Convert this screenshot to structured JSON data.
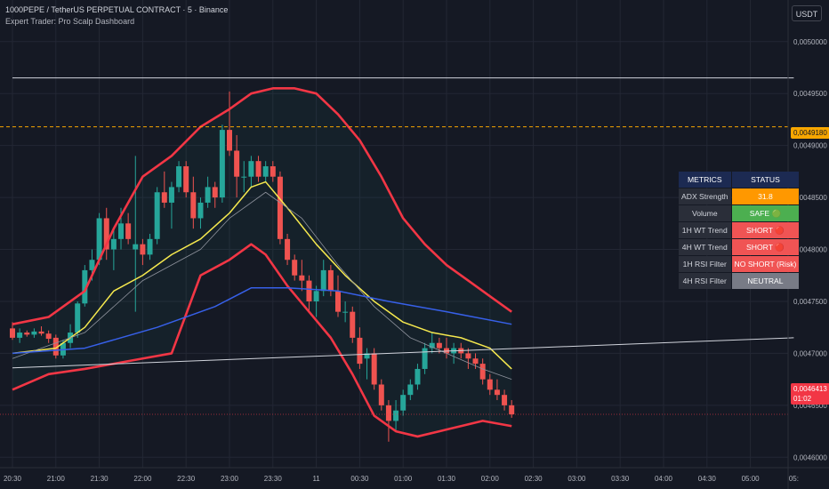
{
  "header": {
    "title": "1000PEPE / TetherUS PERPETUAL CONTRACT · 5 · Binance",
    "indicator": "Expert Trader: Pro Scalp Dashboard",
    "currency_button": "USDT"
  },
  "price_tags": {
    "level": "0,0049180",
    "last": "0,0046413",
    "countdown": "01:02"
  },
  "dashboard": {
    "header": [
      "METRICS",
      "STATUS"
    ],
    "rows": [
      {
        "metric": "ADX Strength",
        "status": "31.8",
        "color": "#ff9800"
      },
      {
        "metric": "Volume",
        "status": "SAFE 🟢",
        "color": "#4caf50"
      },
      {
        "metric": "1H WT Trend",
        "status": "SHORT 🔴",
        "color": "#f05454"
      },
      {
        "metric": "4H WT Trend",
        "status": "SHORT 🔴",
        "color": "#f05454"
      },
      {
        "metric": "1H RSI Filter",
        "status": "NO SHORT (Risk)",
        "color": "#f05454"
      },
      {
        "metric": "4H RSI Filter",
        "status": "NEUTRAL",
        "color": "#787b86"
      }
    ]
  },
  "chart_data": {
    "type": "candlestick",
    "y_ticks": [
      "0,0050000",
      "0,0049500",
      "0,0049000",
      "0,0048500",
      "0,0048000",
      "0,0047500",
      "0,0047000",
      "0,0046500",
      "0,0046000"
    ],
    "x_ticks": [
      "20:30",
      "21:00",
      "21:30",
      "22:00",
      "22:30",
      "23:00",
      "23:30",
      "11",
      "00:30",
      "01:00",
      "01:30",
      "02:00",
      "02:30",
      "03:00",
      "03:30",
      "04:00",
      "04:30",
      "05:00",
      "05:"
    ],
    "ylim": [
      0.00459,
      0.00504
    ],
    "time_axis": {
      "start": "20:30",
      "interval_minutes": 5
    },
    "candles": [
      [
        0.004724,
        0.00473,
        0.004713,
        0.004715
      ],
      [
        0.004715,
        0.004724,
        0.00471,
        0.00472
      ],
      [
        0.00472,
        0.004722,
        0.004716,
        0.004718
      ],
      [
        0.004718,
        0.004724,
        0.004715,
        0.004721
      ],
      [
        0.004721,
        0.004726,
        0.004717,
        0.004719
      ],
      [
        0.004719,
        0.004722,
        0.00471,
        0.004714
      ],
      [
        0.004715,
        0.004718,
        0.004695,
        0.004698
      ],
      [
        0.004698,
        0.004713,
        0.004695,
        0.00471
      ],
      [
        0.00471,
        0.004728,
        0.004705,
        0.00472
      ],
      [
        0.00472,
        0.00475,
        0.004715,
        0.004748
      ],
      [
        0.004748,
        0.004785,
        0.004745,
        0.00478
      ],
      [
        0.00478,
        0.0048,
        0.00477,
        0.00479
      ],
      [
        0.00479,
        0.004835,
        0.004785,
        0.00483
      ],
      [
        0.00483,
        0.00484,
        0.00479,
        0.0048
      ],
      [
        0.0048,
        0.00482,
        0.00478,
        0.00481
      ],
      [
        0.00481,
        0.00484,
        0.0048,
        0.004825
      ],
      [
        0.004825,
        0.004835,
        0.004805,
        0.00481
      ],
      [
        0.0048,
        0.00489,
        0.00474,
        0.004805
      ],
      [
        0.004805,
        0.00481,
        0.004785,
        0.004795
      ],
      [
        0.004795,
        0.004815,
        0.00479,
        0.00481
      ],
      [
        0.00481,
        0.00486,
        0.004805,
        0.004855
      ],
      [
        0.004855,
        0.004875,
        0.00484,
        0.004845
      ],
      [
        0.004845,
        0.004865,
        0.00482,
        0.00486
      ],
      [
        0.00486,
        0.004885,
        0.004855,
        0.00488
      ],
      [
        0.00488,
        0.004885,
        0.00485,
        0.004855
      ],
      [
        0.004855,
        0.00487,
        0.00482,
        0.00483
      ],
      [
        0.00483,
        0.00485,
        0.00482,
        0.004845
      ],
      [
        0.004845,
        0.00487,
        0.00484,
        0.00486
      ],
      [
        0.00486,
        0.004865,
        0.00484,
        0.00485
      ],
      [
        0.00485,
        0.00492,
        0.004845,
        0.004915
      ],
      [
        0.004915,
        0.004952,
        0.00489,
        0.004895
      ],
      [
        0.004895,
        0.00491,
        0.00485,
        0.00487
      ],
      [
        0.00487,
        0.004885,
        0.004855,
        0.00487
      ],
      [
        0.00487,
        0.00489,
        0.00486,
        0.004885
      ],
      [
        0.004885,
        0.00489,
        0.004865,
        0.00487
      ],
      [
        0.00487,
        0.004885,
        0.004865,
        0.00488
      ],
      [
        0.00488,
        0.004885,
        0.004865,
        0.00487
      ],
      [
        0.00487,
        0.004875,
        0.004805,
        0.00481
      ],
      [
        0.00481,
        0.004815,
        0.004785,
        0.00479
      ],
      [
        0.00479,
        0.004795,
        0.00477,
        0.004775
      ],
      [
        0.004775,
        0.00479,
        0.00476,
        0.00477
      ],
      [
        0.00477,
        0.004775,
        0.00474,
        0.00475
      ],
      [
        0.00475,
        0.004765,
        0.004735,
        0.00476
      ],
      [
        0.00476,
        0.00479,
        0.004755,
        0.00478
      ],
      [
        0.00478,
        0.004785,
        0.004755,
        0.00476
      ],
      [
        0.00476,
        0.004775,
        0.004735,
        0.00474
      ],
      [
        0.00474,
        0.00475,
        0.00473,
        0.00474
      ],
      [
        0.00474,
        0.004745,
        0.00471,
        0.004715
      ],
      [
        0.004715,
        0.004725,
        0.004685,
        0.00469
      ],
      [
        0.004695,
        0.004705,
        0.004675,
        0.0047
      ],
      [
        0.0047,
        0.004705,
        0.004665,
        0.00467
      ],
      [
        0.00467,
        0.004675,
        0.004645,
        0.00465
      ],
      [
        0.00465,
        0.004655,
        0.004615,
        0.004635
      ],
      [
        0.004635,
        0.004655,
        0.004625,
        0.004645
      ],
      [
        0.004645,
        0.004665,
        0.00464,
        0.00466
      ],
      [
        0.00466,
        0.004675,
        0.004655,
        0.00467
      ],
      [
        0.00467,
        0.00469,
        0.004665,
        0.004685
      ],
      [
        0.004685,
        0.00471,
        0.00468,
        0.004705
      ],
      [
        0.004705,
        0.00472,
        0.0047,
        0.00471
      ],
      [
        0.00471,
        0.004715,
        0.0047,
        0.004705
      ],
      [
        0.004705,
        0.004715,
        0.004695,
        0.0047
      ],
      [
        0.0047,
        0.00471,
        0.00469,
        0.004705
      ],
      [
        0.004705,
        0.00471,
        0.004695,
        0.0047
      ],
      [
        0.0047,
        0.004705,
        0.004685,
        0.004695
      ],
      [
        0.004695,
        0.0047,
        0.004685,
        0.00469
      ],
      [
        0.00469,
        0.004695,
        0.00467,
        0.004675
      ],
      [
        0.004675,
        0.00468,
        0.00466,
        0.004665
      ],
      [
        0.004665,
        0.004675,
        0.004655,
        0.00466
      ],
      [
        0.00466,
        0.004665,
        0.004645,
        0.00465
      ],
      [
        0.00465,
        0.004655,
        0.004638,
        0.0046413
      ]
    ],
    "series": [
      {
        "name": "BB Upper",
        "color": "#f23645",
        "points": [
          [
            0,
            0.004728
          ],
          [
            5,
            0.004735
          ],
          [
            10,
            0.00476
          ],
          [
            14,
            0.00482
          ],
          [
            18,
            0.00487
          ],
          [
            22,
            0.00489
          ],
          [
            26,
            0.004918
          ],
          [
            30,
            0.004935
          ],
          [
            33,
            0.00495
          ],
          [
            36,
            0.004955
          ],
          [
            39,
            0.004955
          ],
          [
            42,
            0.00495
          ],
          [
            45,
            0.00493
          ],
          [
            48,
            0.004905
          ],
          [
            51,
            0.00487
          ],
          [
            54,
            0.00483
          ],
          [
            57,
            0.004805
          ],
          [
            60,
            0.004785
          ],
          [
            63,
            0.00477
          ],
          [
            66,
            0.004755
          ],
          [
            69,
            0.00474
          ]
        ]
      },
      {
        "name": "BB Lower",
        "color": "#f23645",
        "points": [
          [
            0,
            0.004665
          ],
          [
            5,
            0.00468
          ],
          [
            10,
            0.004685
          ],
          [
            14,
            0.00469
          ],
          [
            18,
            0.004695
          ],
          [
            22,
            0.0047
          ],
          [
            26,
            0.004775
          ],
          [
            30,
            0.00479
          ],
          [
            33,
            0.004805
          ],
          [
            35,
            0.004795
          ],
          [
            38,
            0.004765
          ],
          [
            41,
            0.00474
          ],
          [
            44,
            0.004715
          ],
          [
            47,
            0.00468
          ],
          [
            50,
            0.00464
          ],
          [
            53,
            0.004625
          ],
          [
            56,
            0.00462
          ],
          [
            59,
            0.004625
          ],
          [
            62,
            0.00463
          ],
          [
            65,
            0.004635
          ],
          [
            69,
            0.00463
          ]
        ]
      },
      {
        "name": "EMA Fast",
        "color": "#f6e94e",
        "points": [
          [
            0,
            0.0047
          ],
          [
            6,
            0.004705
          ],
          [
            10,
            0.004725
          ],
          [
            14,
            0.00476
          ],
          [
            18,
            0.004775
          ],
          [
            22,
            0.004795
          ],
          [
            26,
            0.00481
          ],
          [
            30,
            0.004835
          ],
          [
            33,
            0.00486
          ],
          [
            35,
            0.004865
          ],
          [
            38,
            0.00484
          ],
          [
            42,
            0.004805
          ],
          [
            46,
            0.004775
          ],
          [
            50,
            0.00475
          ],
          [
            54,
            0.00473
          ],
          [
            58,
            0.00472
          ],
          [
            62,
            0.004715
          ],
          [
            66,
            0.004705
          ],
          [
            69,
            0.004685
          ]
        ]
      },
      {
        "name": "SMA",
        "color": "#8f939d",
        "points": [
          [
            0,
            0.004695
          ],
          [
            10,
            0.00472
          ],
          [
            18,
            0.00477
          ],
          [
            26,
            0.0048
          ],
          [
            30,
            0.00483
          ],
          [
            35,
            0.004855
          ],
          [
            40,
            0.00483
          ],
          [
            45,
            0.004785
          ],
          [
            50,
            0.004745
          ],
          [
            55,
            0.004715
          ],
          [
            60,
            0.0047
          ],
          [
            65,
            0.004685
          ],
          [
            69,
            0.004675
          ]
        ]
      },
      {
        "name": "EMA Slow",
        "color": "#3760e8",
        "points": [
          [
            0,
            0.0047
          ],
          [
            10,
            0.004705
          ],
          [
            20,
            0.004725
          ],
          [
            28,
            0.004745
          ],
          [
            33,
            0.004763
          ],
          [
            38,
            0.004763
          ],
          [
            45,
            0.00476
          ],
          [
            52,
            0.00475
          ],
          [
            60,
            0.00474
          ],
          [
            69,
            0.004728
          ]
        ]
      }
    ],
    "trendlines": [
      {
        "from": [
          "20:30",
          0.004965
        ],
        "to": [
          "05:",
          0.004965
        ],
        "color": "#d1d4dc"
      },
      {
        "from": [
          "20:30",
          0.004686
        ],
        "to": [
          "05:",
          0.004715
        ],
        "color": "#d1d4dc"
      }
    ],
    "horizontal_levels": [
      {
        "value": 0.004918,
        "color": "#f7a600",
        "style": "dashed"
      },
      {
        "value": 0.0046413,
        "color": "#f23645",
        "style": "dotted"
      }
    ],
    "colors": {
      "up": "#26a69a",
      "down": "#ef5350",
      "background": "#151924",
      "grid": "#232734"
    },
    "grid": true
  }
}
